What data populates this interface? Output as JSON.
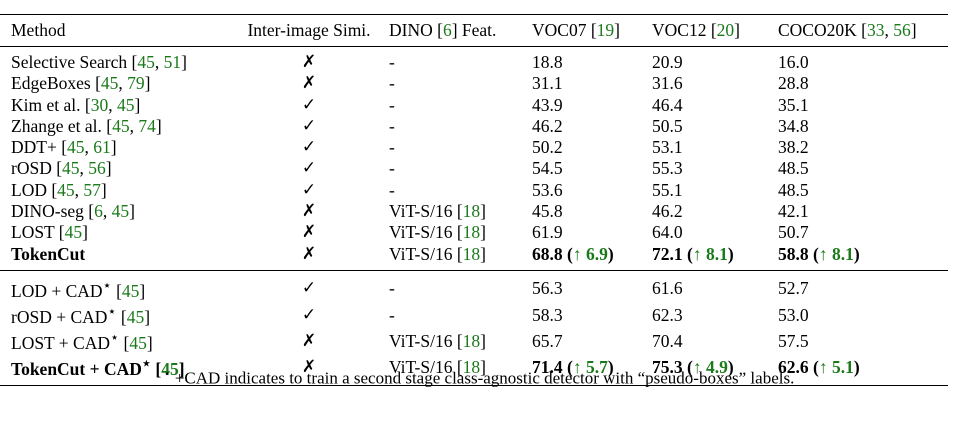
{
  "headers": {
    "method": "Method",
    "inter": "Inter-image Simi.",
    "dino_pre": "DINO [",
    "dino_cite": "6",
    "dino_post": "] Feat.",
    "voc07_pre": "VOC07 [",
    "voc07_cite": "19",
    "voc12_pre": "VOC12  [",
    "voc12_cite": "20",
    "coco_pre": "COCO20K [",
    "coco_cite1": "33",
    "coco_cite2": "56",
    "close": "]",
    "comma": ", "
  },
  "rows_group1": [
    {
      "name": "Selective Search [",
      "c1": "45",
      "c2": "51",
      "inter": "✗",
      "dino": "-",
      "voc07": "18.8",
      "voc12": "20.9",
      "coco": "16.0"
    },
    {
      "name": "EdgeBoxes [",
      "c1": "45",
      "c2": "79",
      "inter": "✗",
      "dino": "-",
      "voc07": "31.1",
      "voc12": "31.6",
      "coco": "28.8"
    },
    {
      "name": "Kim et al. [",
      "c1": "30",
      "c2": "45",
      "inter": "✓",
      "dino": "-",
      "voc07": "43.9",
      "voc12": "46.4",
      "coco": "35.1"
    },
    {
      "name": "Zhange et al. [",
      "c1": "45",
      "c2": "74",
      "inter": "✓",
      "dino": "-",
      "voc07": "46.2",
      "voc12": "50.5",
      "coco": "34.8"
    },
    {
      "name": "DDT+ [",
      "c1": "45",
      "c2": "61",
      "inter": "✓",
      "dino": "-",
      "voc07": "50.2",
      "voc12": "53.1",
      "coco": "38.2"
    },
    {
      "name": "rOSD [",
      "c1": "45",
      "c2": "56",
      "inter": "✓",
      "dino": "-",
      "voc07": "54.5",
      "voc12": "55.3",
      "coco": "48.5"
    },
    {
      "name": "LOD [",
      "c1": "45",
      "c2": "57",
      "inter": "✓",
      "dino": "-",
      "voc07": "53.6",
      "voc12": "55.1",
      "coco": "48.5"
    },
    {
      "name": "DINO-seg [",
      "c1": "6",
      "c2": "45",
      "inter": "✗",
      "dino_pre": "ViT-S/16 [",
      "dino_cite": "18",
      "voc07": "45.8",
      "voc12": "46.2",
      "coco": "42.1"
    }
  ],
  "row_lost": {
    "name": "LOST [",
    "c1": "45",
    "inter": "✗",
    "dino_pre": "ViT-S/16 [",
    "dino_cite": "18",
    "voc07": "61.9",
    "voc12": "64.0",
    "coco": "50.7"
  },
  "row_tokencut": {
    "name": "TokenCut",
    "inter": "✗",
    "dino_pre": "ViT-S/16 [",
    "dino_cite": "18",
    "voc07": "68.8",
    "voc07_gain": "↑ 6.9",
    "voc12": "72.1",
    "voc12_gain": "↑ 8.1",
    "coco": "58.8",
    "coco_gain": "↑ 8.1"
  },
  "rows_group2": [
    {
      "name": "LOD + CAD",
      "star": "⋆",
      "c1": "45",
      "inter": "✓",
      "dino": "-",
      "voc07": "56.3",
      "voc12": "61.6",
      "coco": "52.7"
    },
    {
      "name": "rOSD + CAD",
      "star": "⋆",
      "c1": "45",
      "inter": "✓",
      "dino": "-",
      "voc07": "58.3",
      "voc12": "62.3",
      "coco": "53.0"
    },
    {
      "name": "LOST + CAD",
      "star": "⋆",
      "c1": "45",
      "inter": "✗",
      "dino_pre": "ViT-S/16 [",
      "dino_cite": "18",
      "voc07": "65.7",
      "voc12": "70.4",
      "coco": "57.5"
    }
  ],
  "row_tokencut_cad": {
    "name": "TokenCut + CAD",
    "star": "⋆",
    "c1": "45",
    "inter": "✗",
    "dino_pre": "ViT-S/16 [",
    "dino_cite": "18",
    "voc07": "71.4",
    "voc07_gain": "↑ 5.7",
    "voc12": "75.3",
    "voc12_gain": "↑ 4.9",
    "coco": "62.6",
    "coco_gain": "↑ 5.1"
  },
  "footnote": {
    "star": "⋆",
    "text": " +CAD indicates to train a second stage class-agnostic detector with “pseudo-boxes” labels."
  }
}
